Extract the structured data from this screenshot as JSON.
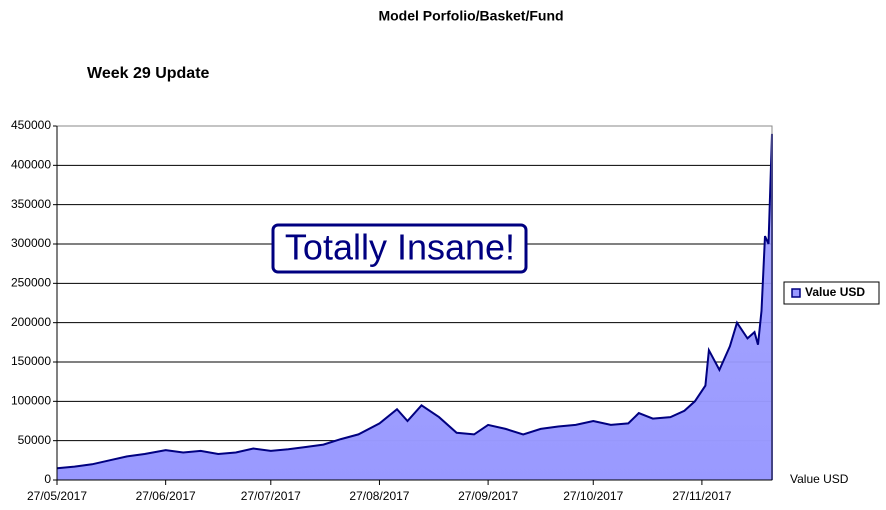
{
  "chart_data": {
    "type": "area",
    "title": "Model Porfolio/Basket/Fund",
    "subtitle": "Week 29 Update",
    "annotation": "Totally Insane!",
    "x_label": "Value USD",
    "x": [
      "27/05/2017",
      "01/06/2017",
      "06/06/2017",
      "11/06/2017",
      "16/06/2017",
      "21/06/2017",
      "27/06/2017",
      "02/07/2017",
      "07/07/2017",
      "12/07/2017",
      "17/07/2017",
      "22/07/2017",
      "27/07/2017",
      "01/08/2017",
      "06/08/2017",
      "11/08/2017",
      "16/08/2017",
      "21/08/2017",
      "27/08/2017",
      "01/09/2017",
      "04/09/2017",
      "08/09/2017",
      "13/09/2017",
      "18/09/2017",
      "23/09/2017",
      "27/09/2017",
      "02/10/2017",
      "07/10/2017",
      "12/10/2017",
      "17/10/2017",
      "22/10/2017",
      "27/10/2017",
      "01/11/2017",
      "06/11/2017",
      "09/11/2017",
      "13/11/2017",
      "18/11/2017",
      "22/11/2017",
      "25/11/2017",
      "28/11/2017",
      "29/11/2017",
      "02/12/2017",
      "05/12/2017",
      "07/12/2017",
      "10/12/2017",
      "12/12/2017",
      "13/12/2017",
      "14/12/2017",
      "15/12/2017",
      "16/12/2017",
      "17/12/2017"
    ],
    "series": [
      {
        "name": "Value USD",
        "color": "#9999ff",
        "line_color": "#000080",
        "values": [
          15000,
          17000,
          20000,
          25000,
          30000,
          33000,
          38000,
          35000,
          37000,
          33000,
          35000,
          40000,
          37000,
          39000,
          42000,
          45000,
          52000,
          58000,
          72000,
          90000,
          75000,
          95000,
          80000,
          60000,
          58000,
          70000,
          65000,
          58000,
          65000,
          68000,
          70000,
          75000,
          70000,
          72000,
          85000,
          78000,
          80000,
          88000,
          100000,
          120000,
          165000,
          140000,
          170000,
          200000,
          180000,
          188000,
          172000,
          215000,
          310000,
          300000,
          440000
        ]
      }
    ],
    "xlim": [
      "27/05/2017",
      "17/12/2017"
    ],
    "xticks": [
      "27/05/2017",
      "27/06/2017",
      "27/07/2017",
      "27/08/2017",
      "27/09/2017",
      "27/10/2017",
      "27/11/2017"
    ],
    "ylim": [
      0,
      450000
    ],
    "yticks": [
      0,
      50000,
      100000,
      150000,
      200000,
      250000,
      300000,
      350000,
      400000,
      450000
    ],
    "grid": true,
    "legend": "right"
  }
}
